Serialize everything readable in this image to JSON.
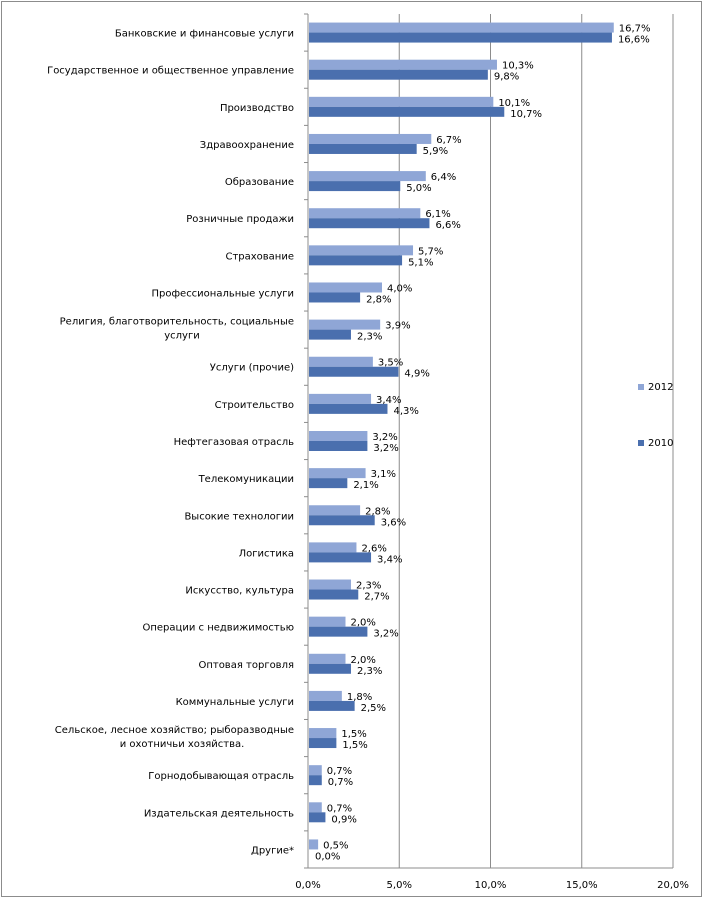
{
  "chart_data": {
    "type": "bar",
    "orientation": "horizontal",
    "categories": [
      [
        "Банковские и финансовые услуги"
      ],
      [
        "Государственное и общественное управление"
      ],
      [
        "Производство"
      ],
      [
        "Здравоохранение"
      ],
      [
        "Образование"
      ],
      [
        "Розничные продажи"
      ],
      [
        "Страхование"
      ],
      [
        "Профессиональные услуги"
      ],
      [
        "Религия, благотворительность, социальные",
        "услуги"
      ],
      [
        "Услуги (прочие)"
      ],
      [
        "Строительство"
      ],
      [
        "Нефтегазовая отрасль"
      ],
      [
        "Телекомуникации"
      ],
      [
        "Высокие технологии"
      ],
      [
        "Логистика"
      ],
      [
        "Искусство, культура"
      ],
      [
        "Операции с недвижимостью"
      ],
      [
        "Оптовая торговля"
      ],
      [
        "Коммунальные услуги"
      ],
      [
        "Сельское, лесное хозяйство; рыборазводные",
        "и охотничьи хозяйства."
      ],
      [
        "Горнодобывающая отрасль"
      ],
      [
        "Издательская деятельность"
      ],
      [
        "Другие*"
      ]
    ],
    "series": [
      {
        "name": "2012",
        "color": "#8fa6d6",
        "values": [
          16.7,
          10.3,
          10.1,
          6.7,
          6.4,
          6.1,
          5.7,
          4.0,
          3.9,
          3.5,
          3.4,
          3.2,
          3.1,
          2.8,
          2.6,
          2.3,
          2.0,
          2.0,
          1.8,
          1.5,
          0.7,
          0.7,
          0.5
        ],
        "labels": [
          "16,7%",
          "10,3%",
          "10,1%",
          "6,7%",
          "6,4%",
          "6,1%",
          "5,7%",
          "4,0%",
          "3,9%",
          "3,5%",
          "3,4%",
          "3,2%",
          "3,1%",
          "2,8%",
          "2,6%",
          "2,3%",
          "2,0%",
          "2,0%",
          "1,8%",
          "1,5%",
          "0,7%",
          "0,7%",
          "0,5%"
        ]
      },
      {
        "name": "2010",
        "color": "#4a6fae",
        "values": [
          16.6,
          9.8,
          10.7,
          5.9,
          5.0,
          6.6,
          5.1,
          2.8,
          2.3,
          4.9,
          4.3,
          3.2,
          2.1,
          3.6,
          3.4,
          2.7,
          3.2,
          2.3,
          2.5,
          1.5,
          0.7,
          0.9,
          0.0
        ],
        "labels": [
          "16,6%",
          "9,8%",
          "10,7%",
          "5,9%",
          "5,0%",
          "6,6%",
          "5,1%",
          "2,8%",
          "2,3%",
          "4,9%",
          "4,3%",
          "3,2%",
          "2,1%",
          "3,6%",
          "3,4%",
          "2,7%",
          "3,2%",
          "2,3%",
          "2,5%",
          "1,5%",
          "0,7%",
          "0,9%",
          "0,0%"
        ]
      }
    ],
    "xlim": [
      0,
      20
    ],
    "xticks": [
      0,
      5,
      10,
      15,
      20
    ],
    "xtick_labels": [
      "0,0%",
      "5,0%",
      "10,0%",
      "15,0%",
      "20,0%"
    ],
    "grid": true,
    "legend_position": "right"
  }
}
